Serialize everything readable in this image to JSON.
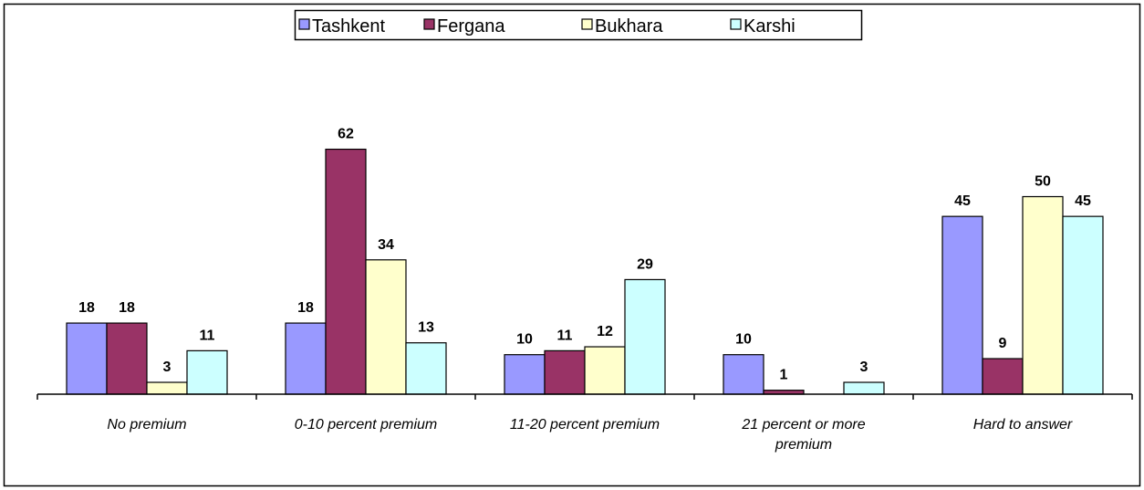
{
  "chart_data": {
    "type": "bar",
    "categories": [
      "No premium",
      "0-10 percent premium",
      "11-20 percent premium",
      "21 percent or more premium",
      "Hard to answer"
    ],
    "series": [
      {
        "name": "Tashkent",
        "color": "#9999ff",
        "values": [
          18,
          18,
          10,
          10,
          45
        ]
      },
      {
        "name": "Fergana",
        "color": "#993366",
        "values": [
          18,
          62,
          11,
          1,
          9
        ]
      },
      {
        "name": "Bukhara",
        "color": "#ffffcc",
        "values": [
          3,
          34,
          12,
          null,
          50
        ]
      },
      {
        "name": "Karshi",
        "color": "#ccffff",
        "values": [
          11,
          13,
          29,
          3,
          45
        ]
      }
    ],
    "legend": "top"
  }
}
